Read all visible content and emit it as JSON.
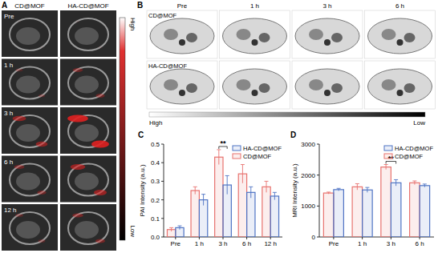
{
  "chart_data": [
    {
      "type": "bar",
      "title": "C",
      "y_label": "PAI Intensity (a.u.)",
      "categories": [
        "Pre",
        "1 h",
        "3 h",
        "6 h",
        "12 h"
      ],
      "series": [
        {
          "name": "CD@MOF",
          "color": "#e8736f",
          "values": [
            0.04,
            0.25,
            0.43,
            0.34,
            0.27
          ],
          "errors": [
            0.01,
            0.02,
            0.04,
            0.05,
            0.03
          ]
        },
        {
          "name": "HA-CD@MOF",
          "color": "#4f74c4",
          "values": [
            0.05,
            0.2,
            0.28,
            0.24,
            0.22
          ],
          "errors": [
            0.01,
            0.03,
            0.05,
            0.03,
            0.02
          ]
        }
      ],
      "ylim": [
        0,
        0.5
      ],
      "yticks": [
        {
          "value": 0,
          "label": "0.0"
        },
        {
          "value": 0.1,
          "label": "0.1"
        },
        {
          "value": 0.2,
          "label": "0.2"
        },
        {
          "value": 0.3,
          "label": "0.3"
        },
        {
          "value": 0.4,
          "label": "0.4"
        },
        {
          "value": 0.5,
          "label": "0.5"
        }
      ],
      "legend": "upper right",
      "annotations": [
        {
          "text": "**",
          "category": "3 h"
        }
      ]
    },
    {
      "type": "bar",
      "title": "D",
      "y_label": "MRI Intensity (a.u.)",
      "categories": [
        "Pre",
        "1 h",
        "3 h",
        "6 h"
      ],
      "series": [
        {
          "name": "CD@MOF",
          "color": "#e8736f",
          "values": [
            1420,
            1620,
            2260,
            1750
          ],
          "errors": [
            30,
            100,
            80,
            60
          ]
        },
        {
          "name": "HA-CD@MOF",
          "color": "#4f74c4",
          "values": [
            1530,
            1520,
            1750,
            1660
          ],
          "errors": [
            40,
            80,
            100,
            50
          ]
        }
      ],
      "ylim": [
        0,
        3000
      ],
      "yticks": [
        0,
        1000,
        2000,
        3000
      ],
      "legend": "upper right",
      "annotations": [
        {
          "text": "**",
          "category": "3 h"
        }
      ]
    }
  ],
  "images": {
    "A": {
      "label": "A",
      "columns": [
        "CD@MOF",
        "HA-CD@MOF"
      ],
      "rows": [
        "Pre",
        "1 h",
        "3 h",
        "6 h",
        "12 h"
      ],
      "colorbar": {
        "high": "High",
        "low": "Low"
      }
    },
    "B": {
      "label": "B",
      "columns": [
        "Pre",
        "1 h",
        "3 h",
        "6 h"
      ],
      "rows": [
        "CD@MOF",
        "HA-CD@MOF"
      ],
      "colorbar": {
        "high": "High",
        "low": "Low"
      }
    }
  }
}
